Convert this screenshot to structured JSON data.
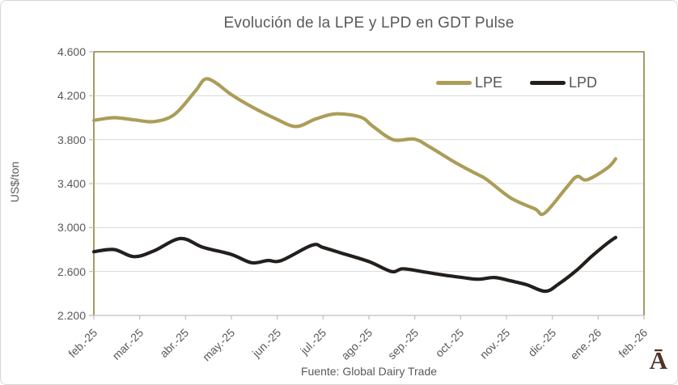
{
  "title": "Evolución de la LPE y LPD en GDT Pulse",
  "source": "Fuente: Global Dairy Trade",
  "logo_glyph": "Ā",
  "colors": {
    "lpe_line": "#AC9D58",
    "lpd_line": "#231F1C",
    "plot_border": "#8F823D",
    "gridline": "#D9D9D9",
    "axis": "#BFBFBF",
    "text": "#595959",
    "logo": "#4E3527"
  },
  "chart_data": {
    "type": "line",
    "title": "Evolución de la LPE y LPD en GDT Pulse",
    "xlabel": "",
    "ylabel": "US$/ton",
    "ylim": [
      2200,
      4600
    ],
    "xlim": [
      0,
      12
    ],
    "grid": "horizontal",
    "legend_position": "top-right-inside",
    "y_ticks": [
      2200,
      2600,
      3000,
      3400,
      3800,
      4200,
      4600
    ],
    "y_tick_labels": [
      "2.200",
      "2.600",
      "3.000",
      "3.400",
      "3.800",
      "4.200",
      "4.600"
    ],
    "x_ticks": [
      0,
      1,
      2,
      3,
      4,
      5,
      6,
      7,
      8,
      9,
      10,
      11,
      12
    ],
    "x_tick_labels": [
      "feb.-25",
      "mar.-25",
      "abr.-25",
      "may.-25",
      "jun.-25",
      "jul.-25",
      "ago.-25",
      "sep.-25",
      "oct.-25",
      "nov.-25",
      "dic.-25",
      "ene.-26",
      "feb.-26"
    ],
    "x_unit": "months since feb-2025",
    "series": [
      {
        "name": "LPE",
        "color": "#AC9D58",
        "points": [
          [
            0.0,
            3975
          ],
          [
            0.44,
            4000
          ],
          [
            0.88,
            3980
          ],
          [
            1.32,
            3965
          ],
          [
            1.76,
            4030
          ],
          [
            2.21,
            4240
          ],
          [
            2.42,
            4350
          ],
          [
            2.65,
            4320
          ],
          [
            3.0,
            4210
          ],
          [
            3.44,
            4100
          ],
          [
            3.97,
            3990
          ],
          [
            4.41,
            3920
          ],
          [
            4.85,
            3990
          ],
          [
            5.29,
            4035
          ],
          [
            5.82,
            4005
          ],
          [
            6.09,
            3920
          ],
          [
            6.53,
            3800
          ],
          [
            6.99,
            3805
          ],
          [
            7.32,
            3735
          ],
          [
            7.85,
            3600
          ],
          [
            8.29,
            3500
          ],
          [
            8.56,
            3440
          ],
          [
            9.09,
            3270
          ],
          [
            9.62,
            3170
          ],
          [
            9.83,
            3130
          ],
          [
            10.32,
            3370
          ],
          [
            10.54,
            3465
          ],
          [
            10.76,
            3435
          ],
          [
            11.21,
            3545
          ],
          [
            11.38,
            3625
          ]
        ]
      },
      {
        "name": "LPD",
        "color": "#231F1C",
        "points": [
          [
            0.0,
            2780
          ],
          [
            0.44,
            2800
          ],
          [
            0.88,
            2735
          ],
          [
            1.32,
            2790
          ],
          [
            1.89,
            2900
          ],
          [
            2.38,
            2820
          ],
          [
            3.0,
            2755
          ],
          [
            3.44,
            2680
          ],
          [
            3.79,
            2700
          ],
          [
            4.09,
            2700
          ],
          [
            4.76,
            2840
          ],
          [
            4.99,
            2820
          ],
          [
            5.38,
            2770
          ],
          [
            6.0,
            2690
          ],
          [
            6.49,
            2600
          ],
          [
            6.74,
            2625
          ],
          [
            7.15,
            2600
          ],
          [
            7.59,
            2570
          ],
          [
            8.03,
            2545
          ],
          [
            8.38,
            2530
          ],
          [
            8.74,
            2545
          ],
          [
            9.09,
            2515
          ],
          [
            9.44,
            2480
          ],
          [
            9.85,
            2420
          ],
          [
            10.15,
            2490
          ],
          [
            10.54,
            2615
          ],
          [
            10.85,
            2735
          ],
          [
            11.21,
            2860
          ],
          [
            11.38,
            2910
          ]
        ]
      }
    ]
  }
}
